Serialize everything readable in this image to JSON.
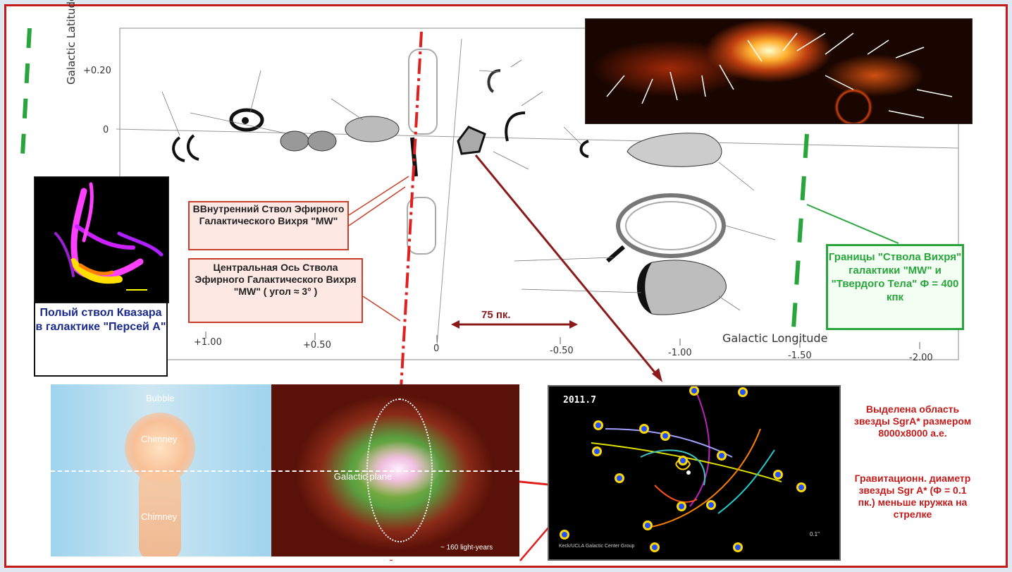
{
  "axes": {
    "y_label": "Galactic Latitude",
    "x_label": "Galactic Longitude",
    "y_ticks": [
      "+0.20",
      "0"
    ],
    "x_ticks": [
      "+1.00",
      "+0.50",
      "0",
      "-0.50",
      "-1.00",
      "-1.50",
      "-2.00"
    ]
  },
  "scale_label": "75 пк.",
  "box_inner": "ВВнутренний Ствол Эфирного Галактического Вихря \"MW\"",
  "box_central": "Центральная Ось Ствола Эфирного Галактического Вихря \"MW\" ( угол ≈ 3° )",
  "box_perseus": "Полый ствол Квазара в галактике \"Персей А\"",
  "box_boundary": "Границы \"Ствола Вихря\" галактики \"MW\" и \"Твердого Тела\" Ф = 400 кпк",
  "note_highlight": "Выделена область звезды SgrA* размером 8000х8000 а.е.",
  "note_gravitation": "Гравитационн. диаметр звезды Sgr A* (Ф = 0.1 пк.) меньше кружка на стрелке",
  "bubble_panel": {
    "bubble": "Bubble",
    "chimney_top": "Chimney",
    "galactic_plane": "Galactic plane",
    "chimney_bottom": "Chimney",
    "scale": "~ 160 light-years"
  },
  "stars_panel": {
    "year": "2011.7",
    "credit": "Keck/UCLA Galactic Center Group",
    "scale": "0.1\""
  },
  "colors": {
    "frame": "#c41a1a",
    "axis_red": "#e0201e",
    "boundary_green": "#2aa43c",
    "title_blue": "#1a2a8c"
  }
}
